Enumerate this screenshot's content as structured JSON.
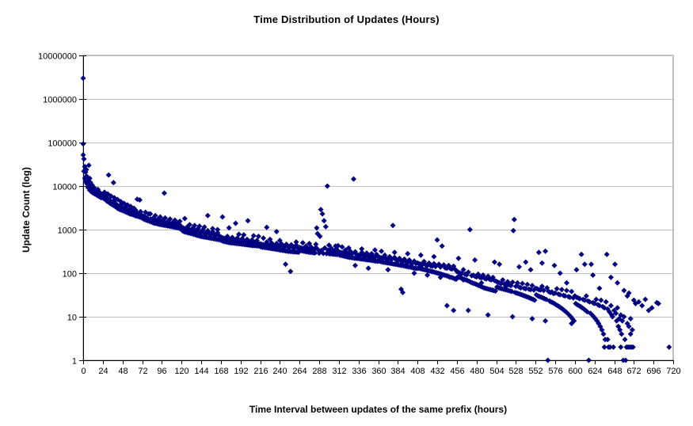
{
  "chart_data": {
    "type": "scatter",
    "title": "Time Distribution of Updates (Hours)",
    "xlabel": "Time Interval between updates of the same prefix (hours)",
    "ylabel": "Update Count (log)",
    "xlim": [
      0,
      720
    ],
    "ylim": [
      1,
      10000000
    ],
    "y_scale": "log",
    "grid": "horizontal",
    "legend": "none",
    "x_ticks": [
      0,
      24,
      48,
      72,
      96,
      120,
      144,
      168,
      192,
      216,
      240,
      264,
      288,
      312,
      336,
      360,
      384,
      408,
      432,
      456,
      480,
      504,
      528,
      552,
      576,
      600,
      624,
      648,
      672,
      696,
      720
    ],
    "y_ticks": [
      1,
      10,
      100,
      1000,
      10000,
      100000,
      1000000,
      10000000
    ],
    "colors": {
      "marker": "#000080",
      "gridline": "#c0c0c0",
      "plot_border": "#808080",
      "axis": "#000000",
      "background": "#ffffff",
      "text": "#000000"
    },
    "marker": {
      "shape": "diamond",
      "size": 7
    },
    "series_name": "update-count-per-interval",
    "segments": [
      {
        "start": 0,
        "counts": [
          93000,
          42000,
          28000,
          21000,
          24000,
          16000,
          13000,
          11500,
          15000,
          9800,
          9100,
          10500,
          8300,
          7600,
          8900,
          7100,
          7900,
          6700,
          8400,
          6300,
          7200,
          5900,
          6600,
          6100
        ]
      },
      {
        "start": 24,
        "counts": [
          5800,
          5200,
          6400,
          4900,
          5600,
          4500,
          5100,
          4300,
          4800,
          4000,
          4500,
          3800,
          4200,
          3600,
          4700,
          3400,
          3900,
          3200,
          3600,
          3000,
          3400,
          2900,
          3800,
          2800,
          3200,
          2700,
          3000,
          2600,
          3300,
          2500,
          2900,
          2400,
          2700,
          2300,
          3100,
          2250,
          2600,
          2200,
          2500,
          2100,
          2800,
          2050,
          2400,
          2000,
          2300,
          1950,
          2200,
          1900
        ]
      },
      {
        "start": 72,
        "counts": [
          2100,
          1800,
          2000,
          1700,
          1950,
          1650,
          1850,
          1600,
          2300,
          1550,
          1750,
          1500,
          1700,
          1450,
          1900,
          1400,
          1650,
          1380,
          1600,
          1350,
          1800,
          1320,
          1550,
          1300,
          1500,
          1280,
          1700,
          1260,
          1450,
          1240,
          1400,
          1220,
          1600,
          1200,
          1380,
          1180,
          1350,
          1160,
          1500,
          1140,
          1320,
          1120,
          1300,
          1100,
          1450,
          1080,
          1280,
          1060
        ]
      },
      {
        "start": 120,
        "counts": [
          1150,
          950,
          1100,
          900,
          1050,
          880,
          1000,
          860,
          1200,
          840,
          980,
          820,
          950,
          800,
          1100,
          780,
          930,
          760,
          900,
          740,
          1050,
          720,
          880,
          700,
          860,
          690,
          1000,
          680,
          840,
          670,
          820,
          660,
          950,
          650,
          800,
          640,
          780,
          630,
          900,
          620,
          760,
          610,
          740,
          600,
          850,
          590,
          720,
          580
        ]
      },
      {
        "start": 168,
        "counts": [
          680,
          560,
          650,
          540,
          630,
          530,
          610,
          520,
          700,
          510,
          600,
          500,
          590,
          495,
          660,
          490,
          580,
          485,
          570,
          480,
          640,
          475,
          560,
          470,
          550,
          465,
          620,
          460,
          540,
          455,
          530,
          450,
          600,
          445,
          520,
          440,
          510,
          435,
          580,
          430,
          500,
          428,
          490,
          425,
          560,
          422,
          480,
          420
        ]
      },
      {
        "start": 216,
        "counts": [
          470,
          400,
          460,
          395,
          450,
          390,
          445,
          385,
          520,
          380,
          440,
          375,
          435,
          370,
          490,
          365,
          430,
          360,
          425,
          355,
          480,
          350,
          420,
          345,
          415,
          340,
          470,
          335,
          410,
          330,
          405,
          325,
          460,
          320,
          400,
          318,
          395,
          315,
          450,
          312,
          390,
          310,
          385,
          308,
          440,
          305,
          380,
          303
        ]
      },
      {
        "start": 264,
        "counts": [
          390,
          330,
          380,
          325,
          370,
          320,
          365,
          315,
          420,
          310,
          360,
          305,
          355,
          300,
          400,
          298,
          350,
          295,
          345,
          292,
          390,
          1090,
          810,
          340,
          288,
          700,
          2900,
          335,
          2300,
          285,
          1600,
          380,
          1170,
          282,
          10000,
          335,
          280,
          330,
          278,
          370,
          275,
          325,
          272,
          320,
          270,
          360,
          268,
          430
        ]
      },
      {
        "start": 312,
        "counts": [
          310,
          260,
          300,
          255,
          295,
          250,
          290,
          245,
          340,
          240,
          285,
          235,
          280,
          230,
          320,
          228,
          275,
          225,
          14500,
          222,
          310,
          220,
          265,
          218,
          258,
          215,
          260,
          212,
          300,
          210,
          255,
          208,
          250,
          205,
          290,
          202,
          245,
          200,
          240,
          198,
          280,
          195,
          235,
          192,
          230,
          190,
          270,
          188
        ]
      },
      {
        "start": 360,
        "counts": [
          240,
          190,
          230,
          185,
          225,
          180,
          220,
          178,
          260,
          175,
          215,
          172,
          210,
          170,
          240,
          168,
          205,
          165,
          1250,
          162,
          230,
          160,
          200,
          158,
          195,
          155,
          220,
          152,
          190,
          150,
          185,
          148,
          210,
          145,
          180,
          142,
          175,
          140,
          200,
          138,
          172,
          135,
          170,
          132,
          190,
          130,
          168,
          128
        ]
      },
      {
        "start": 408,
        "counts": [
          170,
          130,
          165,
          128,
          160,
          125,
          158,
          122,
          185,
          120,
          155,
          118,
          150,
          115,
          170,
          112,
          148,
          110,
          145,
          108,
          165,
          105,
          142,
          102,
          580,
          100,
          160,
          98,
          138,
          95,
          420,
          92,
          155,
          90,
          132,
          88,
          130,
          85,
          150,
          82,
          128,
          80,
          125,
          78,
          145,
          75,
          122,
          72
        ]
      },
      {
        "start": 456,
        "counts": [
          110,
          82,
          105,
          80,
          100,
          78,
          98,
          75,
          120,
          72,
          95,
          70,
          92,
          68,
          105,
          65,
          1000,
          62,
          88,
          60,
          90,
          58,
          85,
          56,
          82,
          54,
          95,
          52,
          80,
          50,
          78,
          48,
          90,
          46,
          76,
          45,
          74,
          44,
          85,
          43,
          72,
          42,
          70,
          41,
          80,
          40,
          68,
          39
        ]
      },
      {
        "start": 504,
        "counts": [
          65,
          48,
          62,
          46,
          60,
          45,
          58,
          44,
          70,
          43,
          56,
          42,
          55,
          41,
          64,
          40,
          54,
          39,
          52,
          38,
          62,
          950,
          1700,
          36,
          50,
          35,
          60,
          34,
          48,
          33,
          46,
          32,
          58,
          31,
          45,
          30,
          44,
          29,
          55,
          28,
          43,
          27,
          42,
          26,
          52,
          25,
          41,
          24
        ]
      },
      {
        "start": 552,
        "counts": [
          45,
          32,
          44,
          30,
          42,
          29,
          41,
          28,
          50,
          27,
          40,
          26,
          320,
          25,
          46,
          1,
          38,
          23,
          36,
          22,
          37,
          21,
          34,
          20,
          35,
          19,
          44,
          18,
          33,
          17,
          32,
          16,
          42,
          15,
          31,
          14,
          30,
          13,
          40,
          12,
          29,
          11,
          28,
          10,
          38,
          9,
          27,
          8
        ]
      },
      {
        "start": 600,
        "counts": [
          30,
          20,
          28,
          19,
          27,
          18,
          26,
          17,
          270,
          16,
          25,
          15,
          24,
          14,
          30,
          13,
          23,
          1,
          22,
          12,
          160,
          11,
          21,
          10,
          20,
          9,
          25,
          8,
          19,
          7,
          18,
          6,
          24,
          5,
          17,
          4,
          16,
          3,
          22,
          270,
          15,
          2,
          13,
          2,
          18,
          11,
          10,
          2
        ]
      },
      {
        "start": 648,
        "counts": [
          14,
          160,
          12,
          8,
          16,
          6,
          9,
          5,
          11,
          4,
          8,
          1,
          10,
          3,
          1,
          2,
          7,
          2,
          6,
          2,
          9,
          2,
          5,
          2
        ]
      }
    ],
    "extra_points": [
      [
        0,
        3000000
      ],
      [
        0,
        52000
      ],
      [
        1,
        22000
      ],
      [
        2,
        15000
      ],
      [
        3,
        12500
      ],
      [
        4,
        17000
      ],
      [
        5,
        11000
      ],
      [
        6,
        9200
      ],
      [
        7,
        30000
      ],
      [
        8,
        8000
      ],
      [
        9,
        12000
      ],
      [
        10,
        7400
      ],
      [
        11,
        9800
      ],
      [
        12,
        7000
      ],
      [
        13,
        8800
      ],
      [
        14,
        6600
      ],
      [
        15,
        8100
      ],
      [
        16,
        6300
      ],
      [
        17,
        7600
      ],
      [
        18,
        6000
      ],
      [
        19,
        7100
      ],
      [
        20,
        5700
      ],
      [
        21,
        6700
      ],
      [
        22,
        5400
      ],
      [
        23,
        6300
      ],
      [
        26,
        7200
      ],
      [
        30,
        6600
      ],
      [
        31,
        18000
      ],
      [
        34,
        5900
      ],
      [
        37,
        12000
      ],
      [
        38,
        5400
      ],
      [
        42,
        4900
      ],
      [
        46,
        4400
      ],
      [
        50,
        4000
      ],
      [
        54,
        3700
      ],
      [
        58,
        3400
      ],
      [
        62,
        3100
      ],
      [
        66,
        5000
      ],
      [
        69,
        4800
      ],
      [
        70,
        2600
      ],
      [
        76,
        2500
      ],
      [
        82,
        2300
      ],
      [
        88,
        2100
      ],
      [
        94,
        1950
      ],
      [
        99,
        6900
      ],
      [
        100,
        1850
      ],
      [
        106,
        1750
      ],
      [
        112,
        1650
      ],
      [
        118,
        1550
      ],
      [
        124,
        1800
      ],
      [
        130,
        1300
      ],
      [
        136,
        1250
      ],
      [
        142,
        1200
      ],
      [
        148,
        1150
      ],
      [
        152,
        2100
      ],
      [
        158,
        1050
      ],
      [
        164,
        1000
      ],
      [
        170,
        1950
      ],
      [
        178,
        1100
      ],
      [
        186,
        1400
      ],
      [
        190,
        780
      ],
      [
        196,
        760
      ],
      [
        201,
        1600
      ],
      [
        208,
        720
      ],
      [
        214,
        700
      ],
      [
        220,
        640
      ],
      [
        224,
        1130
      ],
      [
        228,
        600
      ],
      [
        236,
        900
      ],
      [
        240,
        560
      ],
      [
        247,
        160
      ],
      [
        253,
        110
      ],
      [
        260,
        520
      ],
      [
        268,
        500
      ],
      [
        276,
        480
      ],
      [
        284,
        460
      ],
      [
        300,
        440
      ],
      [
        308,
        420
      ],
      [
        316,
        400
      ],
      [
        324,
        380
      ],
      [
        332,
        150
      ],
      [
        340,
        360
      ],
      [
        348,
        130
      ],
      [
        356,
        340
      ],
      [
        364,
        320
      ],
      [
        372,
        120
      ],
      [
        380,
        300
      ],
      [
        388,
        43
      ],
      [
        390,
        36
      ],
      [
        396,
        280
      ],
      [
        404,
        100
      ],
      [
        412,
        260
      ],
      [
        420,
        90
      ],
      [
        428,
        240
      ],
      [
        436,
        80
      ],
      [
        444,
        18
      ],
      [
        452,
        14
      ],
      [
        458,
        220
      ],
      [
        464,
        70
      ],
      [
        470,
        14
      ],
      [
        478,
        200
      ],
      [
        486,
        60
      ],
      [
        494,
        11
      ],
      [
        502,
        180
      ],
      [
        508,
        160
      ],
      [
        516,
        50
      ],
      [
        524,
        10
      ],
      [
        532,
        140
      ],
      [
        540,
        180
      ],
      [
        546,
        120
      ],
      [
        548,
        9
      ],
      [
        556,
        300
      ],
      [
        560,
        170
      ],
      [
        564,
        8
      ],
      [
        575,
        150
      ],
      [
        582,
        100
      ],
      [
        590,
        60
      ],
      [
        596,
        7
      ],
      [
        602,
        120
      ],
      [
        612,
        160
      ],
      [
        622,
        90
      ],
      [
        630,
        45
      ],
      [
        636,
        2
      ],
      [
        640,
        3
      ],
      [
        644,
        80
      ],
      [
        652,
        60
      ],
      [
        656,
        2
      ],
      [
        660,
        40
      ],
      [
        664,
        30
      ],
      [
        666,
        35
      ],
      [
        668,
        4
      ],
      [
        672,
        24
      ],
      [
        674,
        20
      ],
      [
        678,
        22
      ],
      [
        682,
        18
      ],
      [
        686,
        25
      ],
      [
        690,
        14
      ],
      [
        694,
        16
      ],
      [
        700,
        21
      ],
      [
        702,
        20
      ],
      [
        715,
        2
      ]
    ]
  }
}
